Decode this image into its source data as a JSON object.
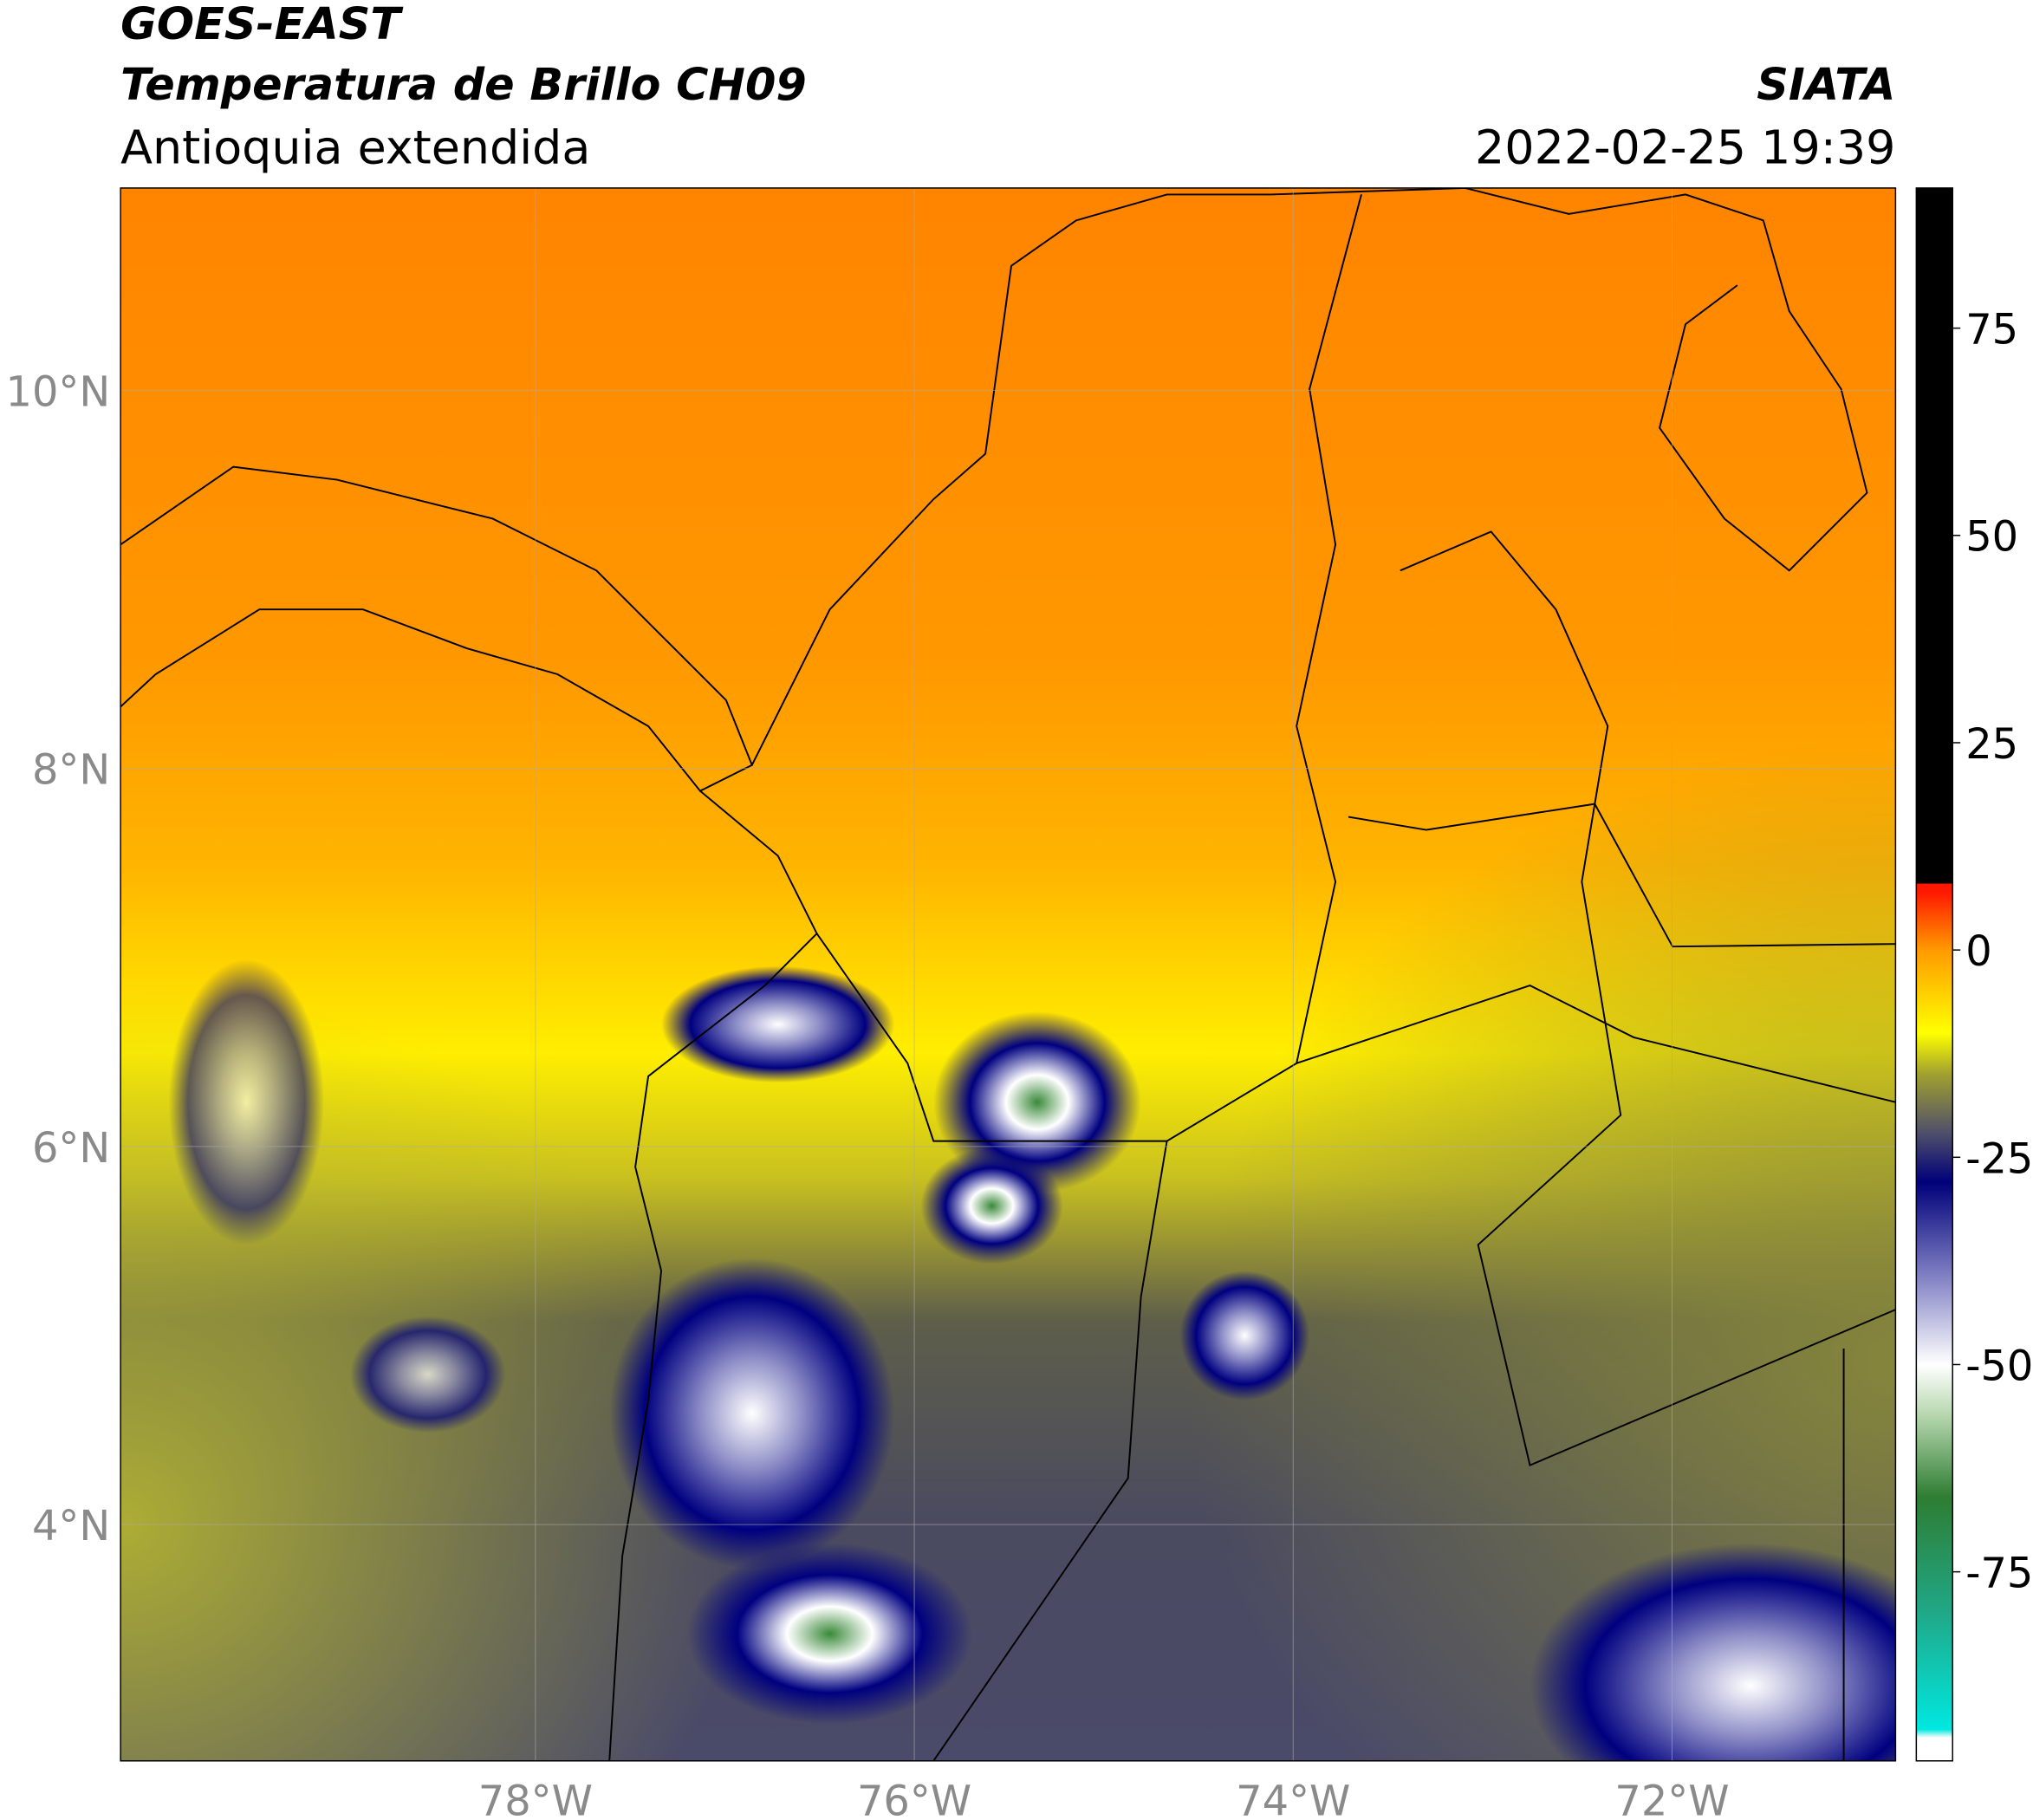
{
  "header": {
    "title_line1": "GOES-EAST",
    "title_line2": "Temperatura de Brillo CH09",
    "subtitle": "Antioquia extendida",
    "source": "SIATA",
    "datetime": "2022-02-25 19:39"
  },
  "map": {
    "xlim": [
      -80.19,
      -70.82
    ],
    "ylim": [
      2.75,
      11.07
    ],
    "xticks": [
      {
        "value": -78,
        "label": "78°W"
      },
      {
        "value": -76,
        "label": "76°W"
      },
      {
        "value": -74,
        "label": "74°W"
      },
      {
        "value": -72,
        "label": "72°W"
      }
    ],
    "yticks": [
      {
        "value": 10,
        "label": "10°N"
      },
      {
        "value": 8,
        "label": "8°N"
      },
      {
        "value": 6,
        "label": "6°N"
      },
      {
        "value": 4,
        "label": "4°N"
      }
    ],
    "grid": true
  },
  "colorbar": {
    "clim": [
      -97.8,
      91.9
    ],
    "ticks": [
      75,
      50,
      25,
      0,
      -25,
      -50,
      -75
    ],
    "colormap": [
      {
        "value": -97.8,
        "color": "#ffffff"
      },
      {
        "value": -95,
        "color": "#ffffff"
      },
      {
        "value": -94,
        "color": "#00e8e0"
      },
      {
        "value": -80,
        "color": "#20a888"
      },
      {
        "value": -66,
        "color": "#2e7d32"
      },
      {
        "value": -56,
        "color": "#b8d8b0"
      },
      {
        "value": -50,
        "color": "#ffffff"
      },
      {
        "value": -40,
        "color": "#8888c8"
      },
      {
        "value": -28,
        "color": "#00007a"
      },
      {
        "value": -22,
        "color": "#50506a"
      },
      {
        "value": -15,
        "color": "#a0a030"
      },
      {
        "value": -10,
        "color": "#ffff00"
      },
      {
        "value": 0,
        "color": "#ff9a00"
      },
      {
        "value": 7,
        "color": "#ff1800"
      },
      {
        "value": 8,
        "color": "#ff1800"
      },
      {
        "value": 8,
        "color": "#000000"
      },
      {
        "value": 91.9,
        "color": "#000000"
      }
    ]
  }
}
